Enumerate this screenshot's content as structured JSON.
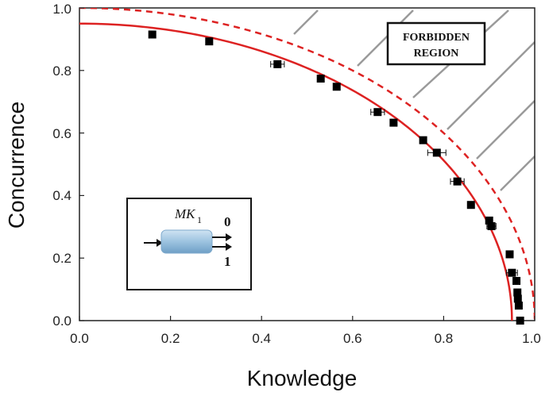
{
  "chart_data": {
    "type": "scatter",
    "xlabel": "Knowledge",
    "ylabel": "Concurrence",
    "xlim": [
      0.0,
      1.0
    ],
    "ylim": [
      0.0,
      1.0
    ],
    "x_ticks": [
      "0.0",
      "0.2",
      "0.4",
      "0.6",
      "0.8",
      "1.0"
    ],
    "y_ticks": [
      "0.0",
      "0.2",
      "0.4",
      "0.6",
      "0.8",
      "1.0"
    ],
    "grid": false,
    "series": [
      {
        "marker": "square",
        "color": "#000000",
        "points": [
          {
            "x": 0.16,
            "y": 0.915,
            "xerr": 0
          },
          {
            "x": 0.285,
            "y": 0.893,
            "xerr": 0
          },
          {
            "x": 0.435,
            "y": 0.82,
            "xerr": 0.015
          },
          {
            "x": 0.53,
            "y": 0.774,
            "xerr": 0
          },
          {
            "x": 0.565,
            "y": 0.748,
            "xerr": 0
          },
          {
            "x": 0.655,
            "y": 0.667,
            "xerr": 0.015
          },
          {
            "x": 0.69,
            "y": 0.633,
            "xerr": 0
          },
          {
            "x": 0.755,
            "y": 0.577,
            "xerr": 0
          },
          {
            "x": 0.785,
            "y": 0.537,
            "xerr": 0.02
          },
          {
            "x": 0.83,
            "y": 0.445,
            "xerr": 0.015
          },
          {
            "x": 0.86,
            "y": 0.37,
            "xerr": 0
          },
          {
            "x": 0.9,
            "y": 0.32,
            "xerr": 0
          },
          {
            "x": 0.905,
            "y": 0.302,
            "xerr": 0.01
          },
          {
            "x": 0.945,
            "y": 0.212,
            "xerr": 0
          },
          {
            "x": 0.95,
            "y": 0.153,
            "xerr": 0.012
          },
          {
            "x": 0.96,
            "y": 0.127,
            "xerr": 0
          },
          {
            "x": 0.962,
            "y": 0.09,
            "xerr": 0
          },
          {
            "x": 0.963,
            "y": 0.07,
            "xerr": 0
          },
          {
            "x": 0.965,
            "y": 0.048,
            "xerr": 0
          },
          {
            "x": 0.968,
            "y": 0.0,
            "xerr": 0
          }
        ]
      }
    ],
    "curves": [
      {
        "style": "solid",
        "color": "#dd2222",
        "x_end": 0.95,
        "y0": 0.95
      },
      {
        "style": "dashed",
        "color": "#dd2222",
        "x_end": 1.0,
        "y0": 1.0
      }
    ],
    "annotations": {
      "forbidden_line1": "FORBIDDEN",
      "forbidden_line2": "REGION",
      "inset_symbol": "MK",
      "inset_subscript": "1",
      "inset_out0": "0",
      "inset_out1": "1"
    }
  }
}
